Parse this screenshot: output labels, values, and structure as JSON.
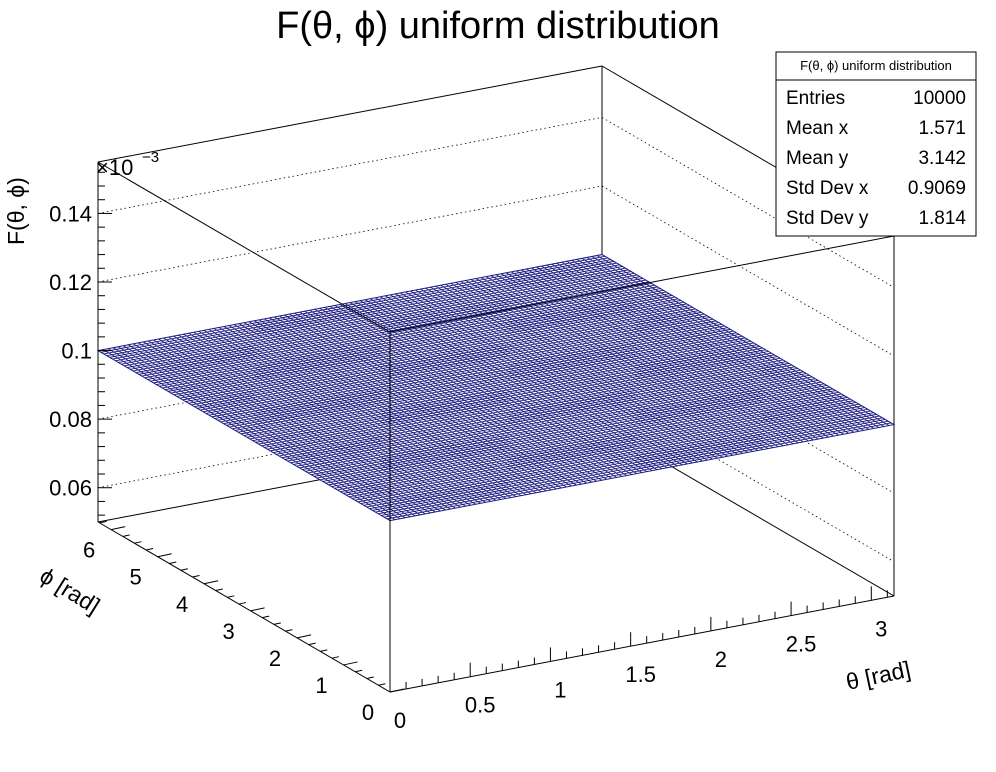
{
  "chart_data": {
    "type": "surface",
    "title": "F(θ, ϕ) uniform distribution",
    "xlabel": "θ [rad]",
    "ylabel": "ϕ [rad]",
    "zlabel": "F(θ, ϕ)",
    "z_multiplier": "×10",
    "z_exponent": "−3",
    "xlim": [
      0,
      3.1416
    ],
    "ylim": [
      0,
      6.2832
    ],
    "zlim": [
      0.05,
      0.155
    ],
    "x_ticks": [
      "0",
      "0.5",
      "1",
      "1.5",
      "2",
      "2.5",
      "3"
    ],
    "x_tick_values": [
      0,
      0.5,
      1,
      1.5,
      2,
      2.5,
      3
    ],
    "y_ticks": [
      "0",
      "1",
      "2",
      "3",
      "4",
      "5",
      "6"
    ],
    "y_tick_values": [
      0,
      1,
      2,
      3,
      4,
      5,
      6
    ],
    "z_ticks": [
      "0.06",
      "0.08",
      "0.1",
      "0.12",
      "0.14"
    ],
    "z_tick_values": [
      0.06,
      0.08,
      0.1,
      0.12,
      0.14
    ],
    "surface_value": 0.1,
    "surface_color": "#1a1a80",
    "grid": true
  },
  "stats": {
    "title": "F(θ, ϕ) uniform distribution",
    "rows": [
      {
        "label": "Entries",
        "value": "10000"
      },
      {
        "label": "Mean x",
        "value": "1.571"
      },
      {
        "label": "Mean y",
        "value": "3.142"
      },
      {
        "label": "Std Dev x",
        "value": "0.9069"
      },
      {
        "label": "Std Dev y",
        "value": "1.814"
      }
    ]
  }
}
